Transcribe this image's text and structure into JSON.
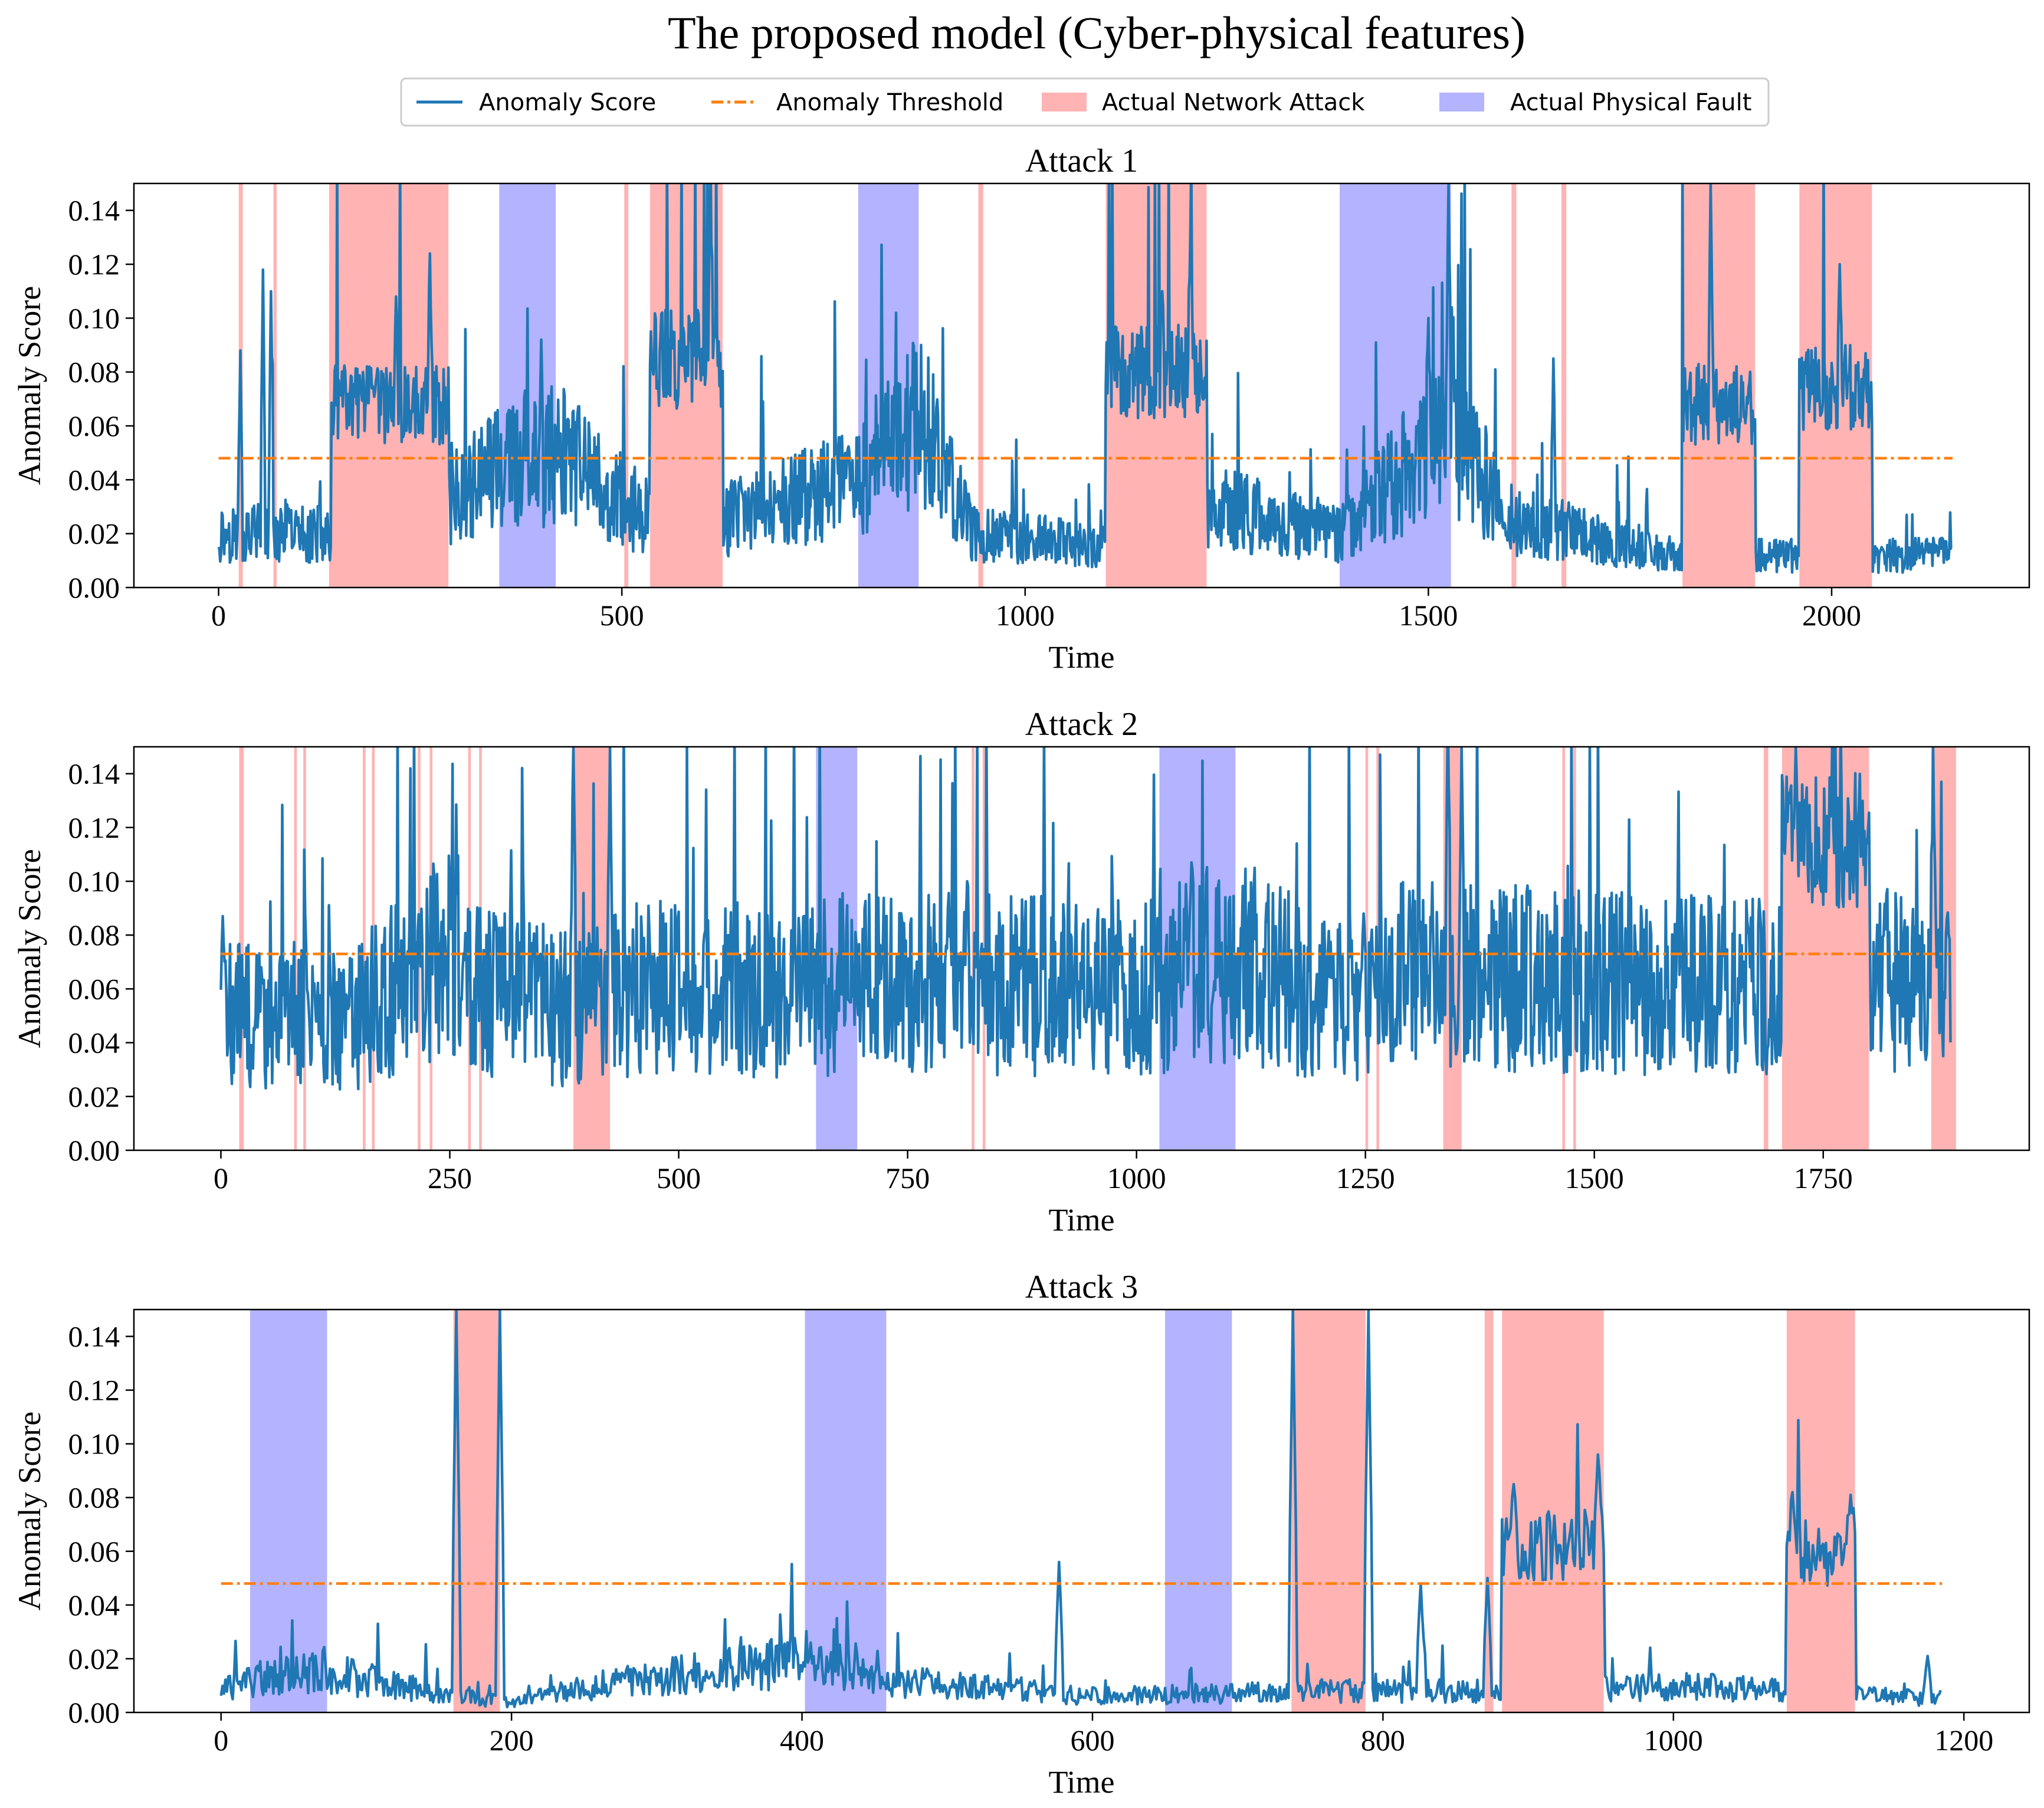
{
  "figure": {
    "title": "The proposed model (Cyber-physical features)",
    "legend": {
      "placement": "top-center",
      "entries": [
        {
          "label": "Anomaly Score",
          "kind": "line",
          "color": "#1f77b4"
        },
        {
          "label": "Anomaly Threshold",
          "kind": "dashdot",
          "color": "#ff7f0e"
        },
        {
          "label": "Actual Network Attack",
          "kind": "patch",
          "color": "#ffb3b3"
        },
        {
          "label": "Actual Physical Fault",
          "kind": "patch",
          "color": "#b3b3ff"
        }
      ]
    }
  },
  "chart_data": [
    {
      "type": "line",
      "title": "Attack 1",
      "xlabel": "Time",
      "ylabel": "Anomaly Score",
      "xlim": [
        -105,
        2245
      ],
      "ylim": [
        0,
        0.15
      ],
      "xticks": [
        0,
        500,
        1000,
        1500,
        2000
      ],
      "yticks": [
        0.0,
        0.02,
        0.04,
        0.06,
        0.08,
        0.1,
        0.12,
        0.14
      ],
      "n_points": 2150,
      "threshold": 0.048,
      "network_attacks": [
        [
          25,
          30
        ],
        [
          68,
          72
        ],
        [
          137,
          285
        ],
        [
          503,
          508
        ],
        [
          535,
          625
        ],
        [
          942,
          948
        ],
        [
          1100,
          1225
        ],
        [
          1603,
          1609
        ],
        [
          1665,
          1671
        ],
        [
          1815,
          1905
        ],
        [
          1960,
          2050
        ]
      ],
      "physical_faults": [
        [
          348,
          418
        ],
        [
          793,
          868
        ],
        [
          1390,
          1528
        ]
      ],
      "score_profile": {
        "baseline": [
          [
            0,
            0.02
          ],
          [
            140,
            0.02
          ],
          [
            285,
            0.035
          ],
          [
            348,
            0.045
          ],
          [
            418,
            0.05
          ],
          [
            535,
            0.025
          ],
          [
            625,
            0.025
          ],
          [
            793,
            0.04
          ],
          [
            868,
            0.065
          ],
          [
            935,
            0.02
          ],
          [
            1100,
            0.015
          ],
          [
            1225,
            0.03
          ],
          [
            1390,
            0.02
          ],
          [
            1528,
            0.06
          ],
          [
            1600,
            0.025
          ],
          [
            1815,
            0.012
          ],
          [
            2150,
            0.012
          ]
        ],
        "segments": [
          [
            140,
            285,
            0.068
          ],
          [
            535,
            625,
            0.085
          ],
          [
            1100,
            1225,
            0.08
          ],
          [
            1815,
            1905,
            0.068
          ],
          [
            1960,
            2050,
            0.075
          ]
        ],
        "spikes": [
          [
            27,
            0.088
          ],
          [
            55,
            0.118
          ],
          [
            65,
            0.11
          ],
          [
            220,
            0.108
          ],
          [
            262,
            0.124
          ],
          [
            400,
            0.092
          ],
          [
            610,
            0.15
          ],
          [
            1170,
            0.11
          ],
          [
            1205,
            0.135
          ],
          [
            1500,
            0.1
          ],
          [
            1525,
            0.15
          ],
          [
            1655,
            0.085
          ],
          [
            1850,
            0.15
          ],
          [
            2010,
            0.12
          ]
        ]
      }
    },
    {
      "type": "line",
      "title": "Attack 2",
      "xlabel": "Time",
      "ylabel": "Anomaly Score",
      "xlim": [
        -95,
        1975
      ],
      "ylim": [
        0,
        0.15
      ],
      "xticks": [
        0,
        250,
        500,
        750,
        1000,
        1250,
        1500,
        1750
      ],
      "yticks": [
        0.0,
        0.02,
        0.04,
        0.06,
        0.08,
        0.1,
        0.12,
        0.14
      ],
      "n_points": 1890,
      "threshold": 0.073,
      "network_attacks": [
        [
          20,
          25
        ],
        [
          80,
          83
        ],
        [
          90,
          93
        ],
        [
          155,
          158
        ],
        [
          165,
          168
        ],
        [
          215,
          218
        ],
        [
          228,
          231
        ],
        [
          270,
          273
        ],
        [
          282,
          285
        ],
        [
          385,
          425
        ],
        [
          820,
          823
        ],
        [
          832,
          835
        ],
        [
          1250,
          1253
        ],
        [
          1262,
          1265
        ],
        [
          1335,
          1355
        ],
        [
          1465,
          1468
        ],
        [
          1477,
          1480
        ],
        [
          1685,
          1690
        ],
        [
          1705,
          1800
        ],
        [
          1868,
          1895
        ]
      ],
      "physical_faults": [
        [
          650,
          695
        ],
        [
          1025,
          1108
        ]
      ],
      "score_profile": {
        "baseline": [
          [
            0,
            0.05
          ],
          [
            150,
            0.05
          ],
          [
            250,
            0.075
          ],
          [
            290,
            0.06
          ],
          [
            380,
            0.052
          ],
          [
            430,
            0.06
          ],
          [
            650,
            0.06
          ],
          [
            700,
            0.063
          ],
          [
            1000,
            0.06
          ],
          [
            1108,
            0.072
          ],
          [
            1220,
            0.055
          ],
          [
            1330,
            0.07
          ],
          [
            1360,
            0.065
          ],
          [
            1700,
            0.06
          ],
          [
            1810,
            0.068
          ],
          [
            1860,
            0.055
          ],
          [
            1890,
            0.06
          ]
        ],
        "segments": [
          [
            1705,
            1800,
            0.115
          ]
        ],
        "spikes": [
          [
            2,
            0.087
          ],
          [
            385,
            0.15
          ],
          [
            425,
            0.15
          ],
          [
            1340,
            0.15
          ],
          [
            1355,
            0.15
          ],
          [
            1720,
            0.15
          ],
          [
            1870,
            0.15
          ],
          [
            815,
            0.1
          ],
          [
            1060,
            0.107
          ]
        ]
      }
    },
    {
      "type": "line",
      "title": "Attack 3",
      "xlabel": "Time",
      "ylabel": "Anomaly Score",
      "xlim": [
        -60,
        1245
      ],
      "ylim": [
        0,
        0.15
      ],
      "xticks": [
        0,
        200,
        400,
        600,
        800,
        1000,
        1200
      ],
      "yticks": [
        0.0,
        0.02,
        0.04,
        0.06,
        0.08,
        0.1,
        0.12,
        0.14
      ],
      "n_points": 1185,
      "threshold": 0.048,
      "network_attacks": [
        [
          160,
          192
        ],
        [
          737,
          788
        ],
        [
          870,
          876
        ],
        [
          882,
          952
        ],
        [
          1078,
          1125
        ]
      ],
      "physical_faults": [
        [
          20,
          73
        ],
        [
          402,
          458
        ],
        [
          650,
          696
        ]
      ],
      "score_profile": {
        "baseline": [
          [
            0,
            0.008
          ],
          [
            20,
            0.012
          ],
          [
            73,
            0.015
          ],
          [
            160,
            0.006
          ],
          [
            200,
            0.004
          ],
          [
            260,
            0.01
          ],
          [
            400,
            0.02
          ],
          [
            460,
            0.012
          ],
          [
            600,
            0.006
          ],
          [
            740,
            0.008
          ],
          [
            900,
            0.008
          ],
          [
            1000,
            0.01
          ],
          [
            1185,
            0.005
          ]
        ],
        "segments": [
          [
            882,
            952,
            0.062
          ],
          [
            1078,
            1125,
            0.06
          ]
        ],
        "spikes": [
          [
            162,
            0.15
          ],
          [
            192,
            0.15
          ],
          [
            738,
            0.15
          ],
          [
            790,
            0.15
          ],
          [
            577,
            0.056
          ],
          [
            826,
            0.048
          ],
          [
            872,
            0.05
          ],
          [
            890,
            0.085
          ],
          [
            948,
            0.096
          ],
          [
            1082,
            0.082
          ],
          [
            1122,
            0.081
          ],
          [
            1175,
            0.021
          ]
        ]
      }
    }
  ]
}
